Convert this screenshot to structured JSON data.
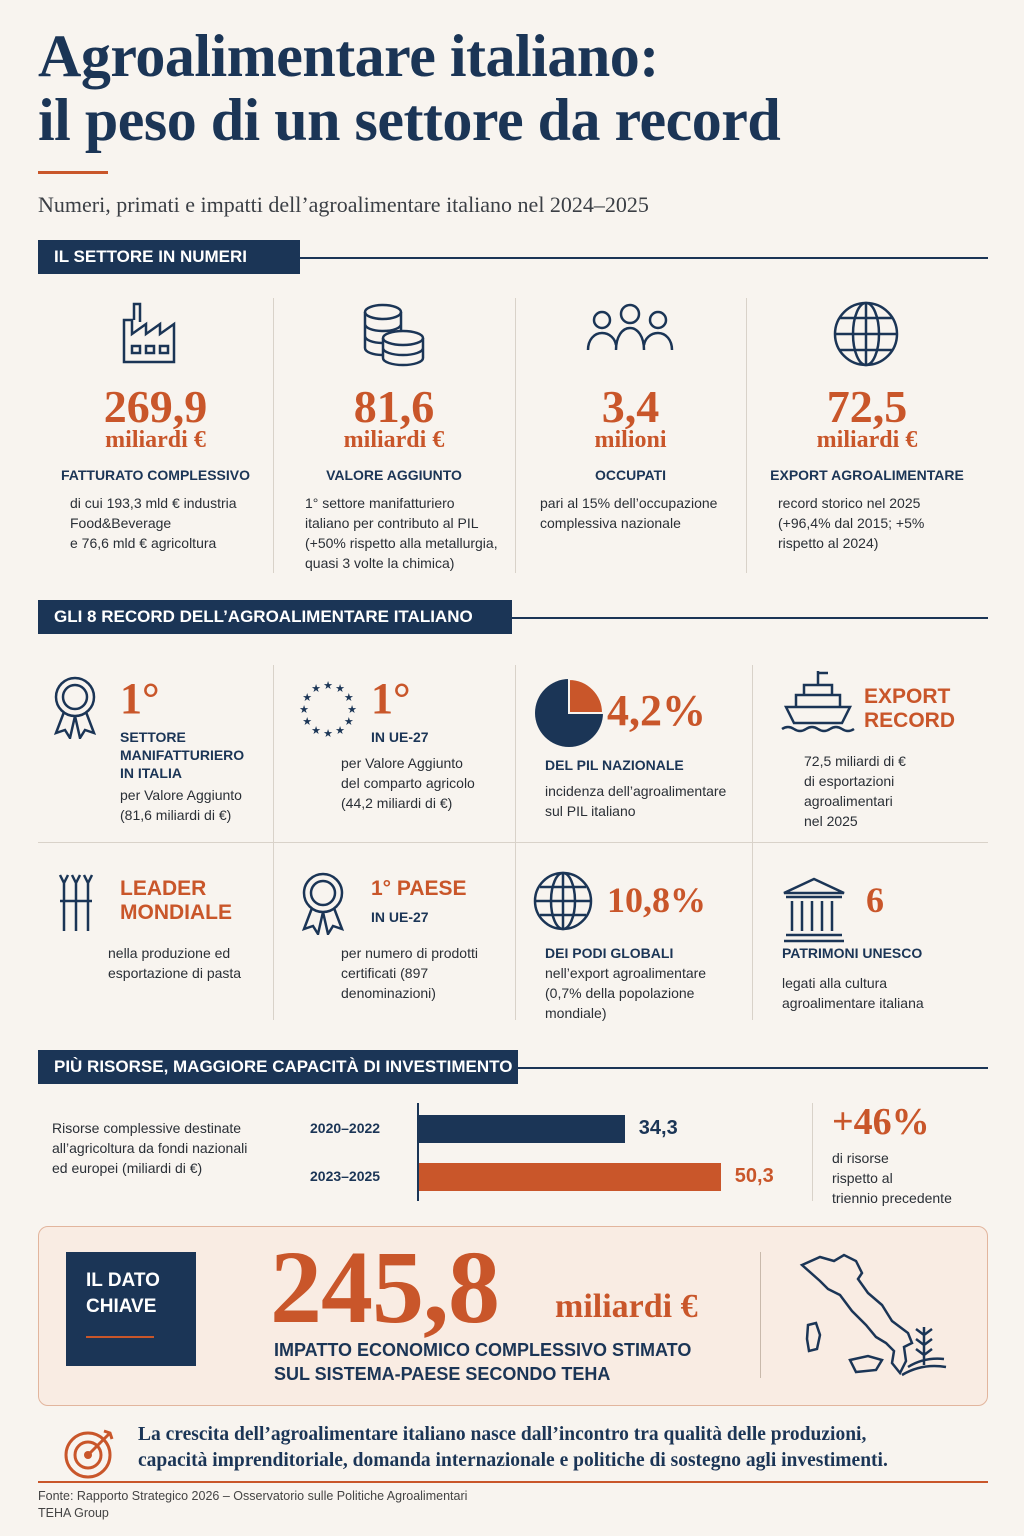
{
  "header": {
    "title": [
      "Agroalimentare italiano:",
      "il peso di un settore da record"
    ],
    "subtitle": "Numeri, primati e impatti dell’agroalimentare italiano nel 2024–2025"
  },
  "sector_numbers": {
    "heading": "IL SETTORE IN NUMERI",
    "items": [
      {
        "value": "269,9",
        "unit": "miliardi €",
        "label": "FATTURATO COMPLESSIVO",
        "description": [
          "di cui 193,3 mld € industria",
          "Food&Beverage",
          "e 76,6 mld € agricoltura"
        ]
      },
      {
        "value": "81,6",
        "unit": "miliardi €",
        "label": "VALORE AGGIUNTO",
        "description": [
          "1° settore manifatturiero",
          "italiano per contributo al PIL",
          "(+50% rispetto alla metallurgia,",
          "quasi 3 volte la chimica)"
        ]
      },
      {
        "value": "3,4",
        "unit": "milioni",
        "label": "OCCUPATI",
        "description": [
          "pari al 15% dell’occupazione",
          "complessiva nazionale"
        ]
      },
      {
        "value": "72,5",
        "unit": "miliardi €",
        "label": "EXPORT AGROALIMENTARE",
        "description": [
          "record storico nel 2025",
          "(+96,4% dal 2015; +5%",
          "rispetto al 2024)"
        ]
      }
    ]
  },
  "records": {
    "heading": "GLI 8 RECORD DELL’AGROALIMENTARE ITALIANO",
    "items": [
      {
        "headline": [
          "1°"
        ],
        "label": [
          "SETTORE",
          "MANIFATTURIERO",
          "IN ITALIA"
        ],
        "description": [
          "per Valore Aggiunto",
          "(81,6 miliardi di €)"
        ]
      },
      {
        "headline": [
          "1°"
        ],
        "label": [
          "IN UE-27"
        ],
        "description": [
          "per Valore Aggiunto",
          "del comparto agricolo",
          "(44,2 miliardi di €)"
        ]
      },
      {
        "headline": [
          "4,2%"
        ],
        "label": [
          "DEL PIL NAZIONALE"
        ],
        "description": [
          "incidenza dell’agroalimentare",
          "sul PIL italiano"
        ]
      },
      {
        "headline": [
          "EXPORT",
          "RECORD"
        ],
        "label": [],
        "description": [
          "72,5 miliardi di €",
          "di esportazioni",
          "agroalimentari",
          "nel 2025"
        ]
      },
      {
        "headline": [
          "LEADER",
          "MONDIALE"
        ],
        "label": [],
        "description": [
          "nella produzione ed",
          "esportazione di pasta"
        ]
      },
      {
        "headline": [
          "1° PAESE"
        ],
        "label": [
          "IN UE-27"
        ],
        "description": [
          "per numero di prodotti",
          "certificati (897",
          "denominazioni)"
        ]
      },
      {
        "headline": [
          "10,8%"
        ],
        "label": [
          "DEI PODI GLOBALI"
        ],
        "description": [
          "nell’export agroalimentare",
          "(0,7% della popolazione",
          "mondiale)"
        ]
      },
      {
        "headline": [
          "6"
        ],
        "label": [
          "PATRIMONI UNESCO"
        ],
        "description": [
          "legati alla cultura",
          "agroalimentare italiana"
        ]
      }
    ]
  },
  "investment": {
    "heading": "PIÙ RISORSE, MAGGIORE CAPACITÀ DI INVESTIMENTO",
    "description": [
      "Risorse complessive destinate",
      "all’agricoltura da fondi nazionali",
      "ed europei (miliardi di €)"
    ],
    "chart": {
      "type": "bar",
      "categories": [
        "2020–2022",
        "2023–2025"
      ],
      "values": [
        34.3,
        50.3
      ],
      "value_labels": [
        "34,3",
        "50,3"
      ],
      "colors": [
        "#1b3556",
        "#c9562a"
      ]
    },
    "highlight": "+46%",
    "highlight_description": [
      "di risorse",
      "rispetto al",
      "triennio precedente"
    ]
  },
  "key_figure": {
    "badge": [
      "IL DATO",
      "CHIAVE"
    ],
    "value": "245,8",
    "unit": "miliardi €",
    "description": [
      "IMPATTO ECONOMICO COMPLESSIVO STIMATO",
      "SUL SISTEMA-PAESE SECONDO TEHA"
    ]
  },
  "conclusion": [
    "La crescita dell’agroalimentare italiano nasce dall’incontro tra qualità delle produzioni,",
    "capacità imprenditoriale, domanda internazionale e politiche di sostegno agli investimenti."
  ],
  "source": [
    "Fonte: Rapporto Strategico 2026 – Osservatorio sulle Politiche Agroalimentari",
    "TEHA Group"
  ]
}
